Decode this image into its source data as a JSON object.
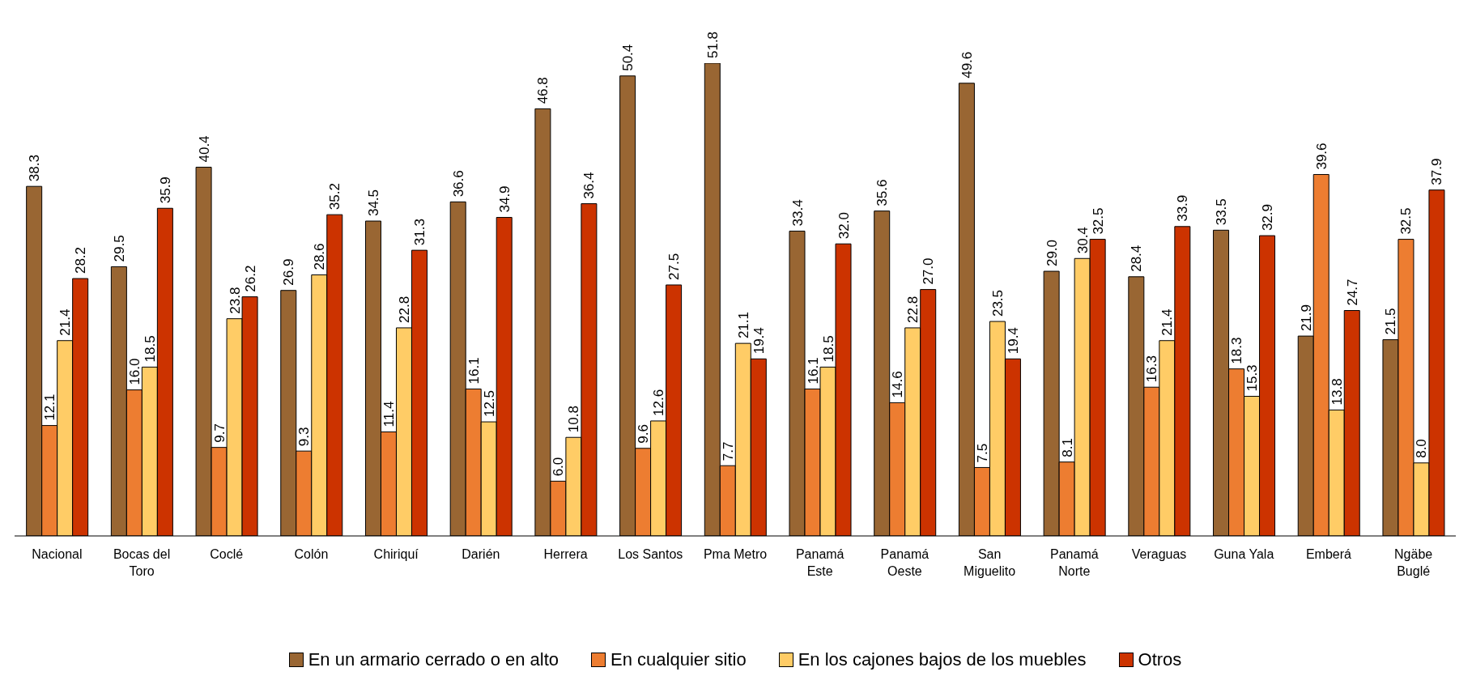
{
  "chart_data": {
    "type": "bar",
    "tick_labels": "x",
    "categories": [
      "Nacional",
      "Bocas del Toro",
      "Coclé",
      "Colón",
      "Chiriquí",
      "Darién",
      "Herrera",
      "Los Santos",
      "Pma Metro",
      "Panamá Este",
      "Panamá Oeste",
      "San Miguelito",
      "Panamá Norte",
      "Veraguas",
      "Guna Yala",
      "Emberá",
      "Ngäbe Buglé"
    ],
    "series": [
      {
        "name": "En un armario cerrado o en alto",
        "color": "#996633",
        "values": [
          38.3,
          29.5,
          40.4,
          26.9,
          34.5,
          36.6,
          46.8,
          50.4,
          51.8,
          33.4,
          35.6,
          49.6,
          29.0,
          28.4,
          33.5,
          21.9,
          21.5
        ],
        "value_labels": [
          "38.3",
          "29.5",
          "40.4",
          "26.9",
          "34.5",
          "36.6",
          "46.8",
          "50.4",
          "51.8",
          "33.4",
          "35.6",
          "49.6",
          "29.0",
          "28.4",
          "33.5",
          "21.9",
          "21.5"
        ]
      },
      {
        "name": "En cualquier sitio",
        "color": "#ed7d31",
        "values": [
          12.1,
          16.0,
          9.7,
          9.3,
          11.4,
          16.1,
          6.0,
          9.6,
          7.7,
          16.1,
          14.6,
          7.5,
          8.1,
          16.3,
          18.3,
          39.6,
          32.5
        ],
        "value_labels": [
          "12.1",
          "16.0",
          "9.7",
          "9.3",
          "11.4",
          "16.1",
          "6.0",
          "9.6",
          "7.7",
          "16.1",
          "14.6",
          "7.5",
          "8.1",
          "16.3",
          "18.3",
          "39.6",
          "32.5"
        ]
      },
      {
        "name": "En los cajones bajos de los muebles",
        "color": "#ffcc66",
        "values": [
          21.4,
          18.5,
          23.8,
          28.6,
          22.8,
          12.5,
          10.8,
          12.6,
          21.1,
          18.5,
          22.8,
          23.5,
          30.4,
          21.4,
          15.3,
          13.8,
          8.0
        ],
        "value_labels": [
          "21.4",
          "18.5",
          "23.8",
          "28.6",
          "22.8",
          "12.5",
          "10.8",
          "12.6",
          "21.1",
          "18.5",
          "22.8",
          "23.5",
          "30.4",
          "21.4",
          "15.3",
          "13.8",
          "8.0"
        ]
      },
      {
        "name": "Otros",
        "color": "#cc3300",
        "values": [
          28.2,
          35.9,
          26.2,
          35.2,
          31.3,
          34.9,
          36.4,
          27.5,
          19.4,
          32.0,
          27.0,
          19.4,
          32.5,
          33.9,
          32.9,
          24.7,
          37.9
        ],
        "value_labels": [
          "28.2",
          "35.9",
          "26.2",
          "35.2",
          "31.3",
          "34.9",
          "36.4",
          "27.5",
          "19.4",
          "32.0",
          "27.0",
          "19.4",
          "32.5",
          "33.9",
          "32.9",
          "24.7",
          "37.9"
        ]
      }
    ],
    "legend": "bottom"
  }
}
